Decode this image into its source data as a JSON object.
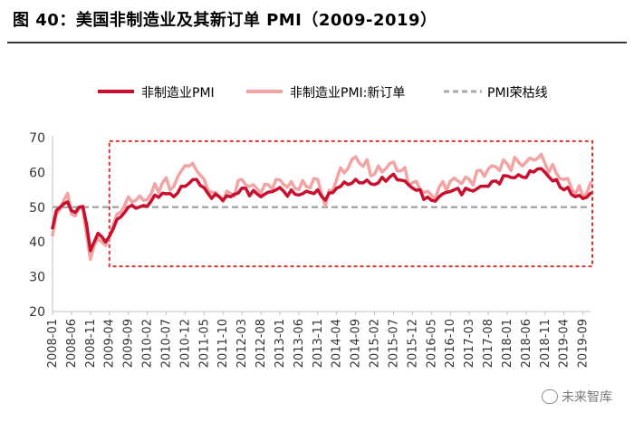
{
  "figure": {
    "title": "图 40：美国非制造业及其新订单 PMI（2009-2019）",
    "watermark": "未来智库"
  },
  "colors": {
    "pmi": "#c8102e",
    "new_orders": "#f2a3a3",
    "boom_bust": "#a9a9a9",
    "highlight_box": "#d9342b",
    "axis": "#bfbfbf"
  },
  "chart_data": {
    "type": "line",
    "x_tick_labels": [
      "2008-01",
      "2008-06",
      "2008-11",
      "2009-04",
      "2009-09",
      "2010-02",
      "2010-07",
      "2010-12",
      "2011-05",
      "2011-10",
      "2012-03",
      "2012-08",
      "2013-01",
      "2013-06",
      "2013-11",
      "2014-04",
      "2014-09",
      "2015-02",
      "2015-07",
      "2015-12",
      "2016-05",
      "2016-10",
      "2017-03",
      "2017-08",
      "2018-01",
      "2018-06",
      "2018-11",
      "2019-04",
      "2019-09"
    ],
    "x_range": [
      "2008-01",
      "2019-11"
    ],
    "ylim": [
      20,
      70
    ],
    "y_ticks": [
      20,
      30,
      40,
      50,
      60,
      70
    ],
    "grid": false,
    "legend_position": "top",
    "highlight_range": {
      "x_start": "2009-04",
      "x_end": "2019-11",
      "y_start": 33,
      "y_end": 69
    },
    "reference_line": {
      "name": "PMI荣枯线",
      "value": 50
    },
    "series": [
      {
        "name": "非制造业PMI",
        "key": "pmi",
        "anchors": [
          [
            "2008-01",
            44
          ],
          [
            "2008-02",
            49
          ],
          [
            "2008-03",
            50
          ],
          [
            "2008-04",
            51
          ],
          [
            "2008-05",
            51.5
          ],
          [
            "2008-06",
            49
          ],
          [
            "2008-07",
            48.5
          ],
          [
            "2008-08",
            50
          ],
          [
            "2008-09",
            50.2
          ],
          [
            "2008-10",
            45
          ],
          [
            "2008-11",
            37.5
          ],
          [
            "2008-12",
            40
          ],
          [
            "2009-01",
            42.5
          ],
          [
            "2009-02",
            41.5
          ],
          [
            "2009-03",
            40
          ],
          [
            "2009-06",
            46.5
          ],
          [
            "2009-09",
            50
          ],
          [
            "2010-01",
            50.5
          ],
          [
            "2010-06",
            54
          ],
          [
            "2010-09",
            53
          ],
          [
            "2010-12",
            56
          ],
          [
            "2011-03",
            58
          ],
          [
            "2011-06",
            54
          ],
          [
            "2011-09",
            53
          ],
          [
            "2011-12",
            53
          ],
          [
            "2012-03",
            55.5
          ],
          [
            "2012-08",
            53
          ],
          [
            "2012-12",
            55
          ],
          [
            "2013-06",
            53.5
          ],
          [
            "2013-11",
            55
          ],
          [
            "2014-01",
            52
          ],
          [
            "2014-04",
            55.5
          ],
          [
            "2014-09",
            58
          ],
          [
            "2015-02",
            56.5
          ],
          [
            "2015-07",
            59.5
          ],
          [
            "2015-12",
            55.5
          ],
          [
            "2016-05",
            52
          ],
          [
            "2016-10",
            54.5
          ],
          [
            "2017-03",
            55
          ],
          [
            "2017-08",
            56
          ],
          [
            "2018-01",
            59
          ],
          [
            "2018-06",
            58.5
          ],
          [
            "2018-09",
            61
          ],
          [
            "2018-11",
            60
          ],
          [
            "2019-04",
            55
          ],
          [
            "2019-09",
            52.5
          ],
          [
            "2019-11",
            54
          ]
        ]
      },
      {
        "name": "非制造业PMI:新订单",
        "key": "new_orders",
        "anchors": [
          [
            "2008-01",
            42
          ],
          [
            "2008-02",
            48
          ],
          [
            "2008-03",
            49.5
          ],
          [
            "2008-04",
            52
          ],
          [
            "2008-05",
            54
          ],
          [
            "2008-06",
            48
          ],
          [
            "2008-07",
            47.5
          ],
          [
            "2008-08",
            50
          ],
          [
            "2008-09",
            49.5
          ],
          [
            "2008-10",
            42
          ],
          [
            "2008-11",
            35
          ],
          [
            "2008-12",
            39
          ],
          [
            "2009-01",
            41
          ],
          [
            "2009-02",
            40
          ],
          [
            "2009-03",
            39
          ],
          [
            "2009-06",
            48
          ],
          [
            "2009-09",
            53
          ],
          [
            "2010-01",
            52
          ],
          [
            "2010-06",
            57
          ],
          [
            "2010-09",
            56
          ],
          [
            "2010-12",
            62
          ],
          [
            "2011-03",
            60.5
          ],
          [
            "2011-06",
            55
          ],
          [
            "2011-09",
            53
          ],
          [
            "2011-12",
            54
          ],
          [
            "2012-03",
            58
          ],
          [
            "2012-08",
            54
          ],
          [
            "2012-12",
            58
          ],
          [
            "2013-06",
            55
          ],
          [
            "2013-11",
            58
          ],
          [
            "2014-01",
            50.5
          ],
          [
            "2014-04",
            58
          ],
          [
            "2014-09",
            64.5
          ],
          [
            "2015-02",
            59.5
          ],
          [
            "2015-07",
            63
          ],
          [
            "2015-12",
            57
          ],
          [
            "2016-05",
            53.5
          ],
          [
            "2016-10",
            57.5
          ],
          [
            "2017-03",
            58
          ],
          [
            "2017-08",
            61
          ],
          [
            "2018-01",
            62.5
          ],
          [
            "2018-06",
            63
          ],
          [
            "2018-09",
            64
          ],
          [
            "2018-11",
            62.5
          ],
          [
            "2019-04",
            58
          ],
          [
            "2019-09",
            53
          ],
          [
            "2019-11",
            57
          ]
        ]
      }
    ]
  }
}
